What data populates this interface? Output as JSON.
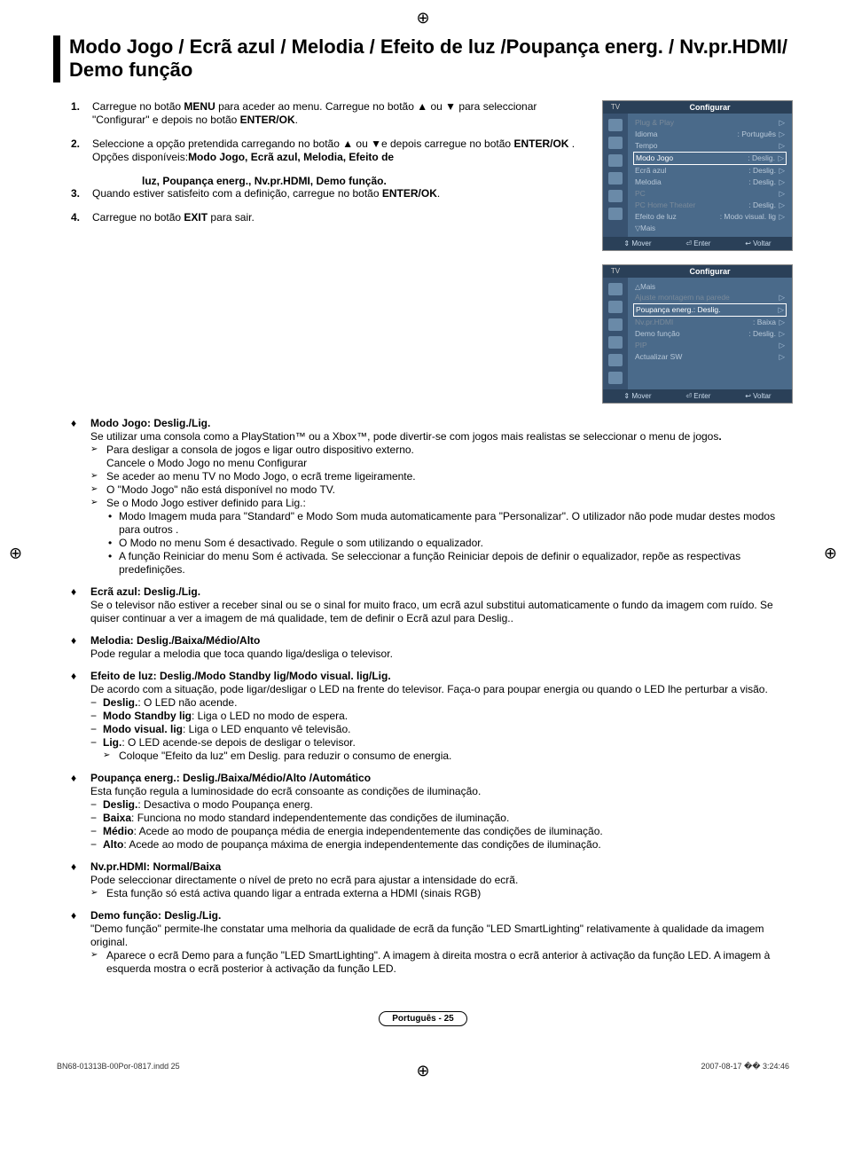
{
  "title": "Modo Jogo / Ecrã azul / Melodia / Efeito de luz /Poupança energ. / Nv.pr.HDMI/ Demo função",
  "steps": [
    {
      "num": "1.",
      "html": "Carregue no botão <b>MENU</b> para aceder ao menu. Carregue no botão ▲ ou ▼ para seleccionar \"Configurar\" e depois no botão <b>ENTER/OK</b>."
    },
    {
      "num": "2.",
      "html": "Seleccione a opção pretendida carregando no botão ▲ ou ▼e depois carregue no botão <b>ENTER/OK</b> .<br>Opções disponíveis:<b>Modo Jogo, Ecrã azul, Melodia, Efeito de</b>",
      "extra": "luz, Poupança energ., Nv.pr.HDMI, Demo função."
    },
    {
      "num": "3.",
      "html": "Quando estiver satisfeito com a definição, carregue no botão <b>ENTER/OK</b>."
    },
    {
      "num": "4.",
      "html": "Carregue no botão <b>EXIT</b> para sair."
    }
  ],
  "items": [
    {
      "title": "Modo Jogo: Deslig./Lig.",
      "body": "Se utilizar uma consola como a PlayStation™ ou a Xbox™, pode divertir-se com jogos mais realistas se seleccionar o menu de jogos<b>.</b>",
      "narrow": true,
      "arrows": [
        "Para desligar a consola de jogos e ligar outro dispositivo externo. Cancele o Modo Jogo no menu Configurar",
        "Se aceder ao menu TV no Modo Jogo, o ecrã treme ligeiramente.",
        "O \"Modo Jogo\" não está disponível no modo TV.",
        "Se o Modo Jogo estiver definido para Lig.:"
      ],
      "bullets_after": [
        "Modo Imagem muda para \"Standard\" e Modo Som muda automaticamente para \"Personalizar\". O utilizador não pode mudar destes modos para outros .",
        "O Modo no menu Som é desactivado. Regule o som utilizando o equalizador.",
        "A função Reiniciar do menu Som é activada. Se seleccionar a função Reiniciar depois de definir o equalizador, repõe as respectivas predefinições."
      ]
    },
    {
      "title": "Ecrã azul: Deslig./Lig.",
      "body": "Se o televisor não estiver a receber sinal ou se o sinal for muito fraco, um ecrã azul substitui automaticamente o fundo da imagem com ruído. Se quiser continuar a ver a imagem de má qualidade, tem de definir o Ecrã azul para Deslig.."
    },
    {
      "title": "Melodia: Deslig./Baixa/Médio/Alto",
      "body": "Pode regular a melodia que toca quando liga/desliga o televisor."
    },
    {
      "title": "Efeito de luz: Deslig./Modo Standby lig/Modo visual. lig/Lig.",
      "body": "De acordo com a situação, pode ligar/desligar o LED na frente do televisor. Faça-o para poupar energia ou quando o LED lhe perturbar a visão.",
      "dashes": [
        "<b>Deslig.</b>: O LED não acende.",
        "<b>Modo Standby lig</b>: Liga o LED no modo de espera.",
        "<b>Modo visual. lig</b>: Liga o LED enquanto vê televisão.",
        "<b>Lig.</b>: O LED acende-se depois de desligar o televisor."
      ],
      "arrow_after": "Coloque \"Efeito da luz\" em Deslig. para reduzir o consumo de energia."
    },
    {
      "title": "Poupança energ.: Deslig./Baixa/Médio/Alto /Automático",
      "body": "Esta função regula a luminosidade do ecrã consoante as condições de iluminação.",
      "dashes": [
        "<b>Deslig.</b>: Desactiva o modo Poupança energ.",
        "<b>Baixa</b>: Funciona no modo standard independentemente das condições de iluminação.",
        "<b>Médio</b>: Acede ao modo de poupança média de energia independentemente das condições de iluminação.",
        "<b>Alto</b>: Acede ao modo de poupança máxima de energia independentemente das condições de iluminação."
      ],
      "wrap_indent": true
    },
    {
      "title": "Nv.pr.HDMI: Normal/Baixa",
      "body": "Pode seleccionar directamente o nível de preto no ecrã para ajustar a intensidade do ecrã.",
      "arrows_full": [
        "Esta função só está activa quando ligar a entrada externa a HDMI (sinais RGB)"
      ]
    },
    {
      "title": "Demo função: Deslig./Lig.",
      "body": "\"Demo função\" permite-lhe constatar uma melhoria da qualidade de ecrã da função \"LED SmartLighting\" relativamente à qualidade da imagem original.",
      "arrows_full": [
        "Aparece o ecrã Demo para a função \"LED SmartLighting\". A imagem à direita mostra o ecrã anterior à activação da função LED. A imagem à esquerda mostra o ecrã posterior à activação da função LED."
      ]
    }
  ],
  "osd1": {
    "tab": "TV",
    "title": "Configurar",
    "rows": [
      {
        "lbl": "Plug & Play",
        "val": "",
        "cls": "dimmed"
      },
      {
        "lbl": "Idioma",
        "val": ": Português"
      },
      {
        "lbl": "Tempo",
        "val": ""
      },
      {
        "lbl": "Modo Jogo",
        "val": ": Deslig.",
        "cls": "highlight"
      },
      {
        "lbl": "Ecrã azul",
        "val": ": Deslig."
      },
      {
        "lbl": "Melodia",
        "val": ": Deslig."
      },
      {
        "lbl": "PC",
        "val": "",
        "cls": "dimmed"
      },
      {
        "lbl": "PC Home Theater",
        "val": ": Deslig.",
        "cls": "dimmed"
      },
      {
        "lbl": "Efeito de luz",
        "val": ": Modo visual. lig"
      }
    ],
    "more": "▽Mais",
    "footer": [
      "⇕ Mover",
      "⏎ Enter",
      "↩ Voltar"
    ]
  },
  "osd2": {
    "tab": "TV",
    "title": "Configurar",
    "more_top": "△Mais",
    "rows": [
      {
        "lbl": "Ajuste montagem na parede",
        "val": "",
        "cls": "dimmed"
      },
      {
        "lbl": "Poupança energ.: Deslig.",
        "val": "",
        "cls": "highlight"
      },
      {
        "lbl": "Nv.pr.HDMI",
        "val": ": Baixa",
        "cls": "dimmed"
      },
      {
        "lbl": "Demo função",
        "val": ": Deslig."
      },
      {
        "lbl": "PIP",
        "val": "",
        "cls": "dimmed"
      },
      {
        "lbl": "Actualizar SW",
        "val": ""
      }
    ],
    "footer": [
      "⇕ Mover",
      "⏎ Enter",
      "↩ Voltar"
    ]
  },
  "pageNum": "Português - 25",
  "docFooter": {
    "left": "BN68-01313B-00Por-0817.indd   25",
    "right": "2007-08-17   �� 3:24:46"
  }
}
